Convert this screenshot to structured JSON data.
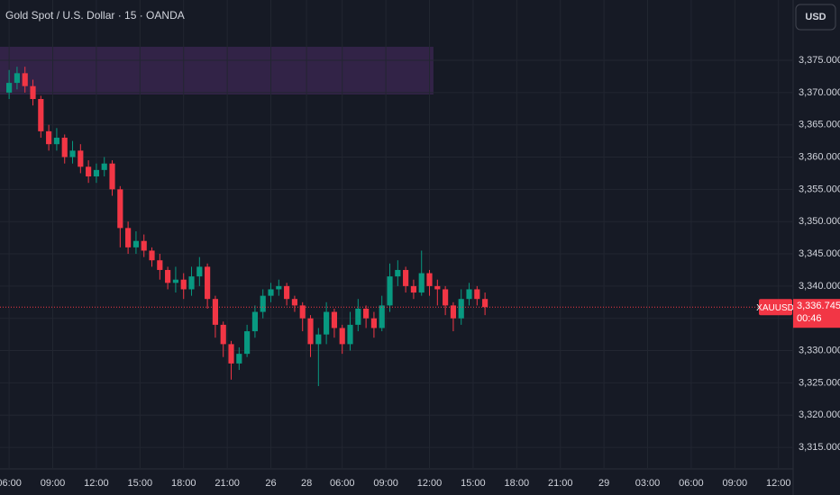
{
  "chart_data": {
    "type": "candlestick",
    "title": "Gold Spot / U.S. Dollar · 15 · OANDA",
    "currency": "USD",
    "up_color": "#089981",
    "down_color": "#f23645",
    "x": [
      0,
      2,
      4,
      6,
      8,
      10,
      12,
      14,
      16,
      18,
      20,
      22,
      24,
      26,
      28,
      30,
      32,
      34,
      36,
      38,
      40,
      42,
      44,
      46,
      48,
      50,
      52,
      54,
      56,
      58,
      60,
      62,
      64,
      66,
      68,
      70,
      72,
      74,
      76,
      78,
      80,
      82,
      84,
      86,
      88,
      90,
      92,
      94,
      96,
      98,
      100,
      102,
      104,
      106,
      108,
      110,
      112,
      114,
      116,
      118,
      120
    ],
    "open": [
      3370,
      3371.5,
      3373,
      3371,
      3369,
      3364,
      3362,
      3363,
      3360,
      3361,
      3358.5,
      3357,
      3358,
      3359,
      3355,
      3349,
      3346,
      3347,
      3345.5,
      3344,
      3342.5,
      3340.5,
      3341,
      3339.5,
      3341.5,
      3343,
      3338,
      3334,
      3331,
      3328,
      3329.5,
      3333,
      3336,
      3338.5,
      3339.5,
      3340,
      3338,
      3337,
      3335,
      3331,
      3332.5,
      3336,
      3333.5,
      3331,
      3334,
      3336.5,
      3335,
      3333.5,
      3337,
      3341.5,
      3342.5,
      3340,
      3339,
      3342,
      3340,
      3339.5,
      3337,
      3335,
      3338,
      3339.5,
      3338
    ],
    "high": [
      3373.5,
      3374,
      3374,
      3372,
      3369.5,
      3365,
      3364.5,
      3363.5,
      3362.5,
      3362,
      3359.5,
      3359,
      3360,
      3359.5,
      3355.5,
      3350,
      3348.5,
      3348,
      3346,
      3345,
      3343,
      3343,
      3342,
      3343,
      3344.5,
      3343.5,
      3338.5,
      3334.5,
      3331.5,
      3330.5,
      3334,
      3337,
      3339.5,
      3340.5,
      3341,
      3340.5,
      3338.5,
      3337.5,
      3335.5,
      3333.5,
      3337.5,
      3336.5,
      3334,
      3336,
      3338,
      3337,
      3336,
      3338.5,
      3343.5,
      3344,
      3343,
      3341,
      3345.5,
      3342.5,
      3341,
      3340,
      3337.5,
      3339.5,
      3340.5,
      3340,
      3339
    ],
    "low": [
      3369,
      3370.5,
      3370,
      3368,
      3363,
      3361,
      3361,
      3359,
      3359,
      3357.5,
      3356,
      3356,
      3357,
      3354,
      3346,
      3345,
      3345,
      3344.5,
      3343,
      3341,
      3339.5,
      3339,
      3338,
      3338.5,
      3340,
      3336.5,
      3332,
      3329,
      3325.5,
      3327,
      3329,
      3332,
      3335,
      3337.5,
      3338.5,
      3337,
      3336,
      3333,
      3329,
      3324.5,
      3331,
      3332,
      3329.5,
      3330,
      3333,
      3333.5,
      3332,
      3333,
      3336,
      3340,
      3339,
      3338,
      3338.5,
      3338.5,
      3337,
      3335.5,
      3333,
      3334,
      3337,
      3337,
      3335.5
    ],
    "close": [
      3371.5,
      3373,
      3371,
      3369,
      3364,
      3362,
      3363,
      3360,
      3361,
      3358.5,
      3357,
      3358,
      3359,
      3355,
      3349,
      3346,
      3347,
      3345.5,
      3344,
      3342.5,
      3340.5,
      3341,
      3339.5,
      3341.5,
      3343,
      3338,
      3334,
      3331,
      3328,
      3329.5,
      3333,
      3336,
      3338.5,
      3339.5,
      3340,
      3338,
      3337,
      3335,
      3331,
      3332.5,
      3336,
      3333.5,
      3331,
      3334,
      3336.5,
      3335,
      3333.5,
      3337,
      3341.5,
      3342.5,
      3340,
      3339,
      3342,
      3340,
      3339.5,
      3337,
      3335,
      3338,
      3339.5,
      3338,
      3336.745
    ],
    "xlim": [
      -2.3,
      197.7
    ],
    "xticks": [
      {
        "value": 0,
        "label": "06:00"
      },
      {
        "value": 11,
        "label": "09:00"
      },
      {
        "value": 22,
        "label": "12:00"
      },
      {
        "value": 33,
        "label": "15:00"
      },
      {
        "value": 44,
        "label": "18:00"
      },
      {
        "value": 55,
        "label": "21:00"
      },
      {
        "value": 66,
        "label": "26"
      },
      {
        "value": 75,
        "label": "28"
      },
      {
        "value": 84,
        "label": "06:00"
      },
      {
        "value": 95,
        "label": "09:00"
      },
      {
        "value": 106,
        "label": "12:00"
      },
      {
        "value": 117,
        "label": "15:00"
      },
      {
        "value": 128,
        "label": "18:00"
      },
      {
        "value": 139,
        "label": "21:00"
      },
      {
        "value": 150,
        "label": "29"
      },
      {
        "value": 161,
        "label": "03:00"
      },
      {
        "value": 172,
        "label": "06:00"
      },
      {
        "value": 183,
        "label": "09:00"
      },
      {
        "value": 194,
        "label": "12:00"
      }
    ],
    "ylim": [
      3311.8,
      3384.35
    ],
    "yticks": [
      {
        "value": 3315,
        "label": "3,315.000"
      },
      {
        "value": 3320,
        "label": "3,320.000"
      },
      {
        "value": 3325,
        "label": "3,325.000"
      },
      {
        "value": 3330,
        "label": "3,330.000"
      },
      {
        "value": 3335,
        "label": "3,335.000"
      },
      {
        "value": 3340,
        "label": "3,340.000"
      },
      {
        "value": 3345,
        "label": "3,345.000"
      },
      {
        "value": 3350,
        "label": "3,350.000"
      },
      {
        "value": 3355,
        "label": "3,355.000"
      },
      {
        "value": 3360,
        "label": "3,360.000"
      },
      {
        "value": 3365,
        "label": "3,365.000"
      },
      {
        "value": 3370,
        "label": "3,370.000"
      },
      {
        "value": 3375,
        "label": "3,375.000"
      }
    ],
    "grid": true,
    "zone": {
      "x": [
        -2.3,
        107
      ],
      "y": [
        3369.7,
        3377.1
      ],
      "color": "#3a2550"
    },
    "last_price": {
      "symbol": "XAUUSD",
      "value": 3336.745,
      "label": "3,336.745",
      "countdown": "00:46",
      "color": "#f23645"
    }
  }
}
